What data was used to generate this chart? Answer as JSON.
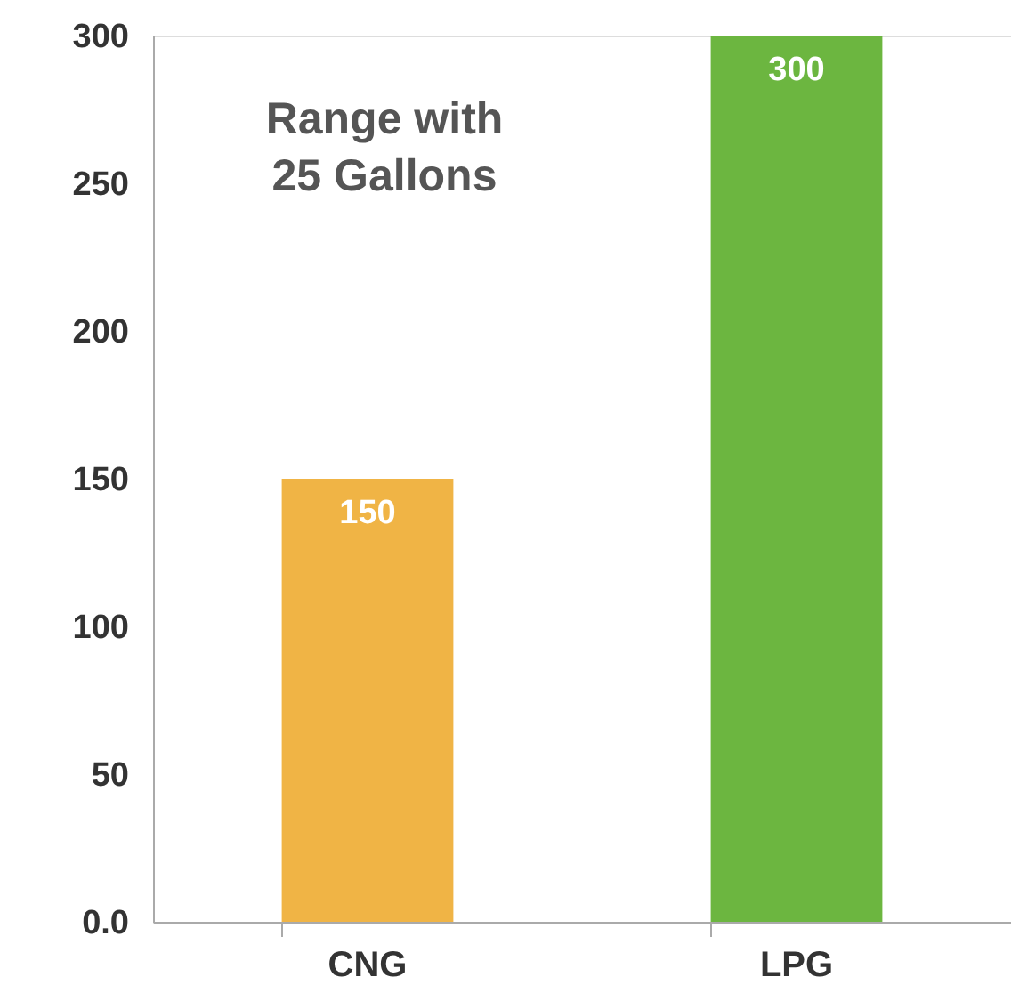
{
  "chart_data": {
    "type": "bar",
    "title": "Range with\n25 Gallons",
    "categories": [
      "CNG",
      "LPG"
    ],
    "values": [
      150,
      300
    ],
    "colors": [
      "#f0b445",
      "#6cb640"
    ],
    "ylim": [
      0,
      300
    ],
    "yticks": [
      {
        "value": 0,
        "label": "0.0"
      },
      50,
      100,
      150,
      200,
      250,
      300
    ],
    "grid": false,
    "data_labels": true
  }
}
